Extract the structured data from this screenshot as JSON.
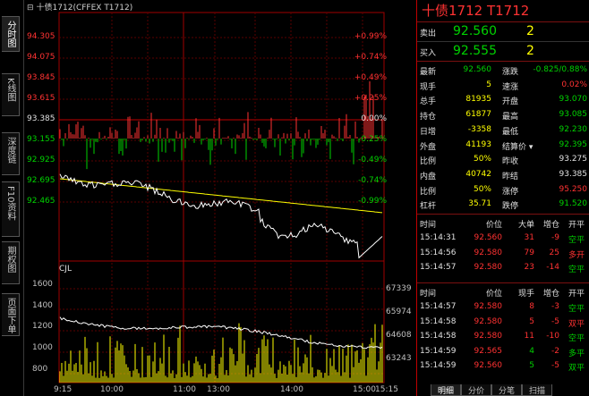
{
  "chart": {
    "title": "十债1712(CFFEX T1712)",
    "price_labels": [
      "94.305",
      "94.075",
      "93.845",
      "93.615",
      "93.385",
      "93.155",
      "92.925",
      "92.695",
      "92.465"
    ],
    "pct_labels": [
      "+0.99%",
      "+0.74%",
      "+0.49%",
      "+0.25%",
      "0.00%",
      "-0.25%",
      "-0.49%",
      "-0.74%",
      "-0.99%"
    ],
    "indicator_label": "CJL",
    "volume_labels": [
      "1600",
      "1400",
      "1200",
      "1000",
      "800",
      "600",
      "400",
      "200"
    ],
    "oi_labels": [
      "67339",
      "65974",
      "64608",
      "63243"
    ],
    "time_labels": [
      "9:15",
      "10:00",
      "11:00",
      "13:00",
      "14:00",
      "15:00",
      "15:15"
    ]
  },
  "left_tabs": [
    "分时图",
    "K线图",
    "深度链",
    "F10资料",
    "期权图",
    "页面下单"
  ],
  "colors": {
    "up": "#ff3232",
    "down": "#00d200",
    "avg": "#ffff00",
    "price": "#ffffff",
    "volume": "#ffff00",
    "border": "#c00000"
  },
  "panel": {
    "title": "十债1712  T1712",
    "sell_label": "卖出",
    "sell_price": "92.560",
    "sell_qty": "2",
    "buy_label": "买入",
    "buy_price": "92.555",
    "buy_qty": "2",
    "stats": [
      {
        "l1": "最新",
        "v1": "92.560",
        "c1": "green",
        "l2": "涨跌",
        "v2": "-0.825/0.88%",
        "c2": "green"
      },
      {
        "l1": "现手",
        "v1": "5",
        "c1": "yellow",
        "l2": "速涨",
        "v2": "0.02%",
        "c2": "red"
      },
      {
        "l1": "总手",
        "v1": "81935",
        "c1": "yellow",
        "l2": "开盘",
        "v2": "93.070",
        "c2": "green"
      },
      {
        "l1": "持仓",
        "v1": "61877",
        "c1": "yellow",
        "l2": "最高",
        "v2": "93.085",
        "c2": "green"
      },
      {
        "l1": "日增",
        "v1": "-3358",
        "c1": "yellow",
        "l2": "最低",
        "v2": "92.230",
        "c2": "green"
      },
      {
        "l1": "外盘",
        "v1": "41193",
        "c1": "yellow",
        "l2": "结算价 ▾",
        "v2": "92.395",
        "c2": "green"
      },
      {
        "l1": "比例",
        "v1": "50%",
        "c1": "yellow",
        "l2": "昨收",
        "v2": "93.275",
        "c2": "white"
      },
      {
        "l1": "内盘",
        "v1": "40742",
        "c1": "yellow",
        "l2": "昨结",
        "v2": "93.385",
        "c2": "white"
      },
      {
        "l1": "比例",
        "v1": "50%",
        "c1": "yellow",
        "l2": "涨停",
        "v2": "95.250",
        "c2": "red"
      },
      {
        "l1": "杠杆",
        "v1": "35.71",
        "c1": "yellow",
        "l2": "跌停",
        "v2": "91.520",
        "c2": "green"
      }
    ],
    "trades1_header": [
      "时间",
      "价位",
      "大单",
      "增仓",
      "开平"
    ],
    "trades1": [
      {
        "t": "15:14:31",
        "p": "92.560",
        "q": "31",
        "qc": "red",
        "d": "-9",
        "k": "空平",
        "kc": "green"
      },
      {
        "t": "15:14:56",
        "p": "92.580",
        "q": "79",
        "qc": "red",
        "d": "25",
        "k": "多开",
        "kc": "red"
      },
      {
        "t": "15:14:57",
        "p": "92.580",
        "q": "23",
        "qc": "red",
        "d": "-14",
        "k": "空平",
        "kc": "green"
      }
    ],
    "trades2_header": [
      "时间",
      "价位",
      "现手",
      "增仓",
      "开平"
    ],
    "trades2": [
      {
        "t": "15:14:57",
        "p": "92.580",
        "q": "8",
        "qc": "red",
        "d": "-3",
        "k": "空平",
        "kc": "green"
      },
      {
        "t": "15:14:58",
        "p": "92.580",
        "q": "5",
        "qc": "red",
        "d": "-5",
        "k": "双平",
        "kc": "red"
      },
      {
        "t": "15:14:58",
        "p": "92.580",
        "q": "11",
        "qc": "red",
        "d": "-10",
        "k": "空平",
        "kc": "green"
      },
      {
        "t": "15:14:59",
        "p": "92.565",
        "q": "4",
        "qc": "green",
        "d": "-2",
        "k": "多平",
        "kc": "green"
      },
      {
        "t": "15:14:59",
        "p": "92.560",
        "q": "5",
        "qc": "green",
        "d": "-5",
        "k": "双平",
        "kc": "green"
      }
    ],
    "bottom_tabs": [
      "明细",
      "分价",
      "分笔",
      "扫描"
    ]
  }
}
